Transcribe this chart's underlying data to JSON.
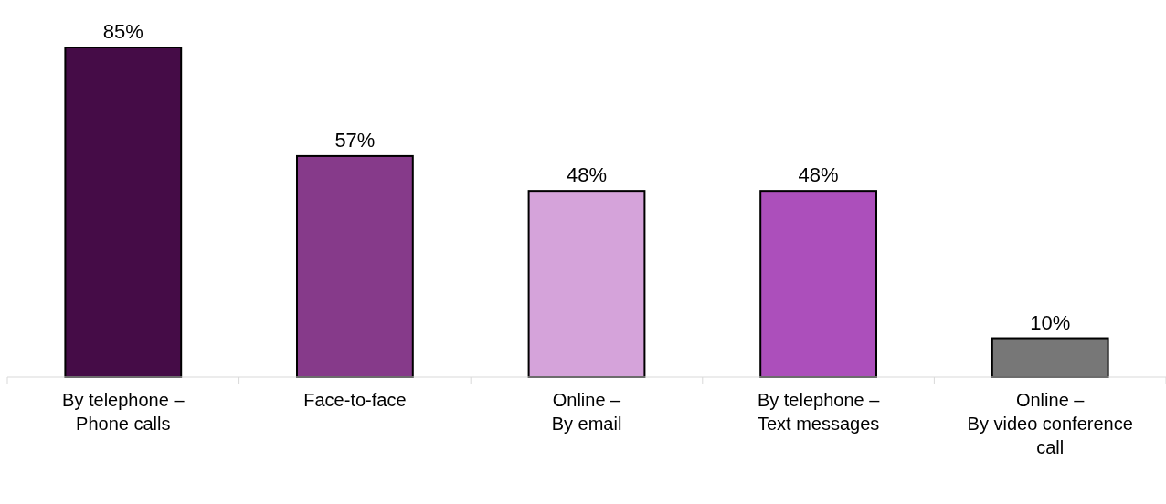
{
  "chart_data": {
    "type": "bar",
    "categories": [
      "By telephone –\nPhone calls",
      "Face-to-face",
      "Online –\nBy email",
      "By telephone –\nText messages",
      "Online –\nBy video conference\ncall"
    ],
    "values": [
      85,
      57,
      48,
      48,
      10
    ],
    "colors": [
      "#450c47",
      "#863a8a",
      "#d5a3da",
      "#ac4fbb",
      "#777777"
    ],
    "data_labels": true,
    "value_labels": [
      "85%",
      "57%",
      "48%",
      "48%",
      "10%"
    ]
  }
}
